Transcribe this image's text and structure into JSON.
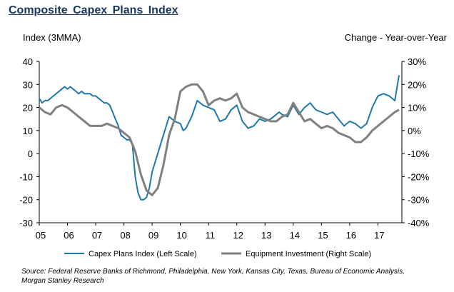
{
  "title": "Composite  Capex  Plans  Index",
  "left_axis_label": "Index (3MMA)",
  "right_axis_label": "Change - Year-over-Year",
  "source": "Source: Federal Reserve Banks of Richmond, Philadelphia, New York, Kansas City, Texas, Bureau of Economic Analysis, Morgan Stanley Research",
  "chart_data": {
    "type": "line",
    "x_tick_labels": [
      "05",
      "06",
      "07",
      "08",
      "09",
      "10",
      "11",
      "12",
      "13",
      "14",
      "15",
      "16",
      "17"
    ],
    "xlim": [
      2005.0,
      2017.85
    ],
    "left_axis": {
      "ylim": [
        -30,
        40
      ],
      "ticks": [
        -30,
        -20,
        -10,
        0,
        10,
        20,
        30,
        40
      ],
      "tick_labels": [
        "-30",
        "-20",
        "-10",
        "0",
        "10",
        "20",
        "30",
        "40"
      ]
    },
    "right_axis": {
      "ylim": [
        -40,
        30
      ],
      "ticks": [
        -40,
        -30,
        -20,
        -10,
        0,
        10,
        20,
        30
      ],
      "tick_labels": [
        "-40%",
        "-30%",
        "-20%",
        "-10%",
        "0%",
        "10%",
        "20%",
        "30%"
      ]
    },
    "grid": false,
    "legend_position": "bottom",
    "series": [
      {
        "name": "Capex Plans Index (Left Scale)",
        "axis": "left",
        "color": "#1f78a8",
        "x": [
          2005.0,
          2005.1,
          2005.2,
          2005.3,
          2005.4,
          2005.5,
          2005.6,
          2005.7,
          2005.8,
          2005.9,
          2006.0,
          2006.1,
          2006.2,
          2006.3,
          2006.4,
          2006.5,
          2006.6,
          2006.7,
          2006.8,
          2006.9,
          2007.0,
          2007.1,
          2007.2,
          2007.3,
          2007.4,
          2007.5,
          2007.6,
          2007.7,
          2007.8,
          2007.9,
          2008.0,
          2008.1,
          2008.2,
          2008.3,
          2008.4,
          2008.5,
          2008.6,
          2008.7,
          2008.8,
          2008.9,
          2009.0,
          2009.2,
          2009.4,
          2009.6,
          2009.8,
          2010.0,
          2010.1,
          2010.2,
          2010.4,
          2010.6,
          2010.8,
          2011.0,
          2011.2,
          2011.4,
          2011.6,
          2011.8,
          2012.0,
          2012.2,
          2012.4,
          2012.6,
          2012.8,
          2013.0,
          2013.2,
          2013.4,
          2013.5,
          2013.6,
          2013.8,
          2014.0,
          2014.2,
          2014.4,
          2014.6,
          2014.8,
          2015.0,
          2015.2,
          2015.4,
          2015.6,
          2015.8,
          2016.0,
          2016.2,
          2016.4,
          2016.6,
          2016.8,
          2017.0,
          2017.2,
          2017.4,
          2017.6,
          2017.75
        ],
        "values": [
          24,
          22,
          23,
          23,
          24,
          25,
          26,
          27,
          28,
          29,
          28,
          29,
          28,
          27,
          26,
          27,
          26,
          26,
          26,
          25,
          25,
          24,
          23,
          22,
          22,
          21,
          18,
          15,
          12,
          8,
          7,
          6,
          6,
          4,
          -10,
          -17,
          -20,
          -20,
          -19,
          -15,
          -8,
          0,
          8,
          16,
          14,
          13,
          10,
          11,
          16,
          23,
          21,
          20,
          19,
          14,
          15,
          19,
          21,
          14,
          11,
          12,
          15,
          14,
          15,
          17,
          18,
          17,
          16,
          21,
          17,
          20,
          22,
          19,
          18,
          17,
          18,
          15,
          12,
          14,
          13,
          11,
          13,
          20,
          25,
          26,
          25,
          23,
          34
        ]
      },
      {
        "name": "Equipment Investment (Right Scale)",
        "axis": "right",
        "color": "#808080",
        "x": [
          2005.0,
          2005.2,
          2005.4,
          2005.6,
          2005.8,
          2006.0,
          2006.2,
          2006.4,
          2006.6,
          2006.8,
          2007.0,
          2007.2,
          2007.4,
          2007.6,
          2007.8,
          2008.0,
          2008.2,
          2008.4,
          2008.6,
          2008.8,
          2009.0,
          2009.2,
          2009.4,
          2009.6,
          2009.8,
          2010.0,
          2010.2,
          2010.4,
          2010.6,
          2010.8,
          2011.0,
          2011.2,
          2011.4,
          2011.6,
          2011.8,
          2012.0,
          2012.2,
          2012.4,
          2012.6,
          2012.8,
          2013.0,
          2013.2,
          2013.4,
          2013.6,
          2013.8,
          2014.0,
          2014.2,
          2014.4,
          2014.6,
          2014.8,
          2015.0,
          2015.2,
          2015.4,
          2015.6,
          2015.8,
          2016.0,
          2016.2,
          2016.4,
          2016.6,
          2016.8,
          2017.0,
          2017.2,
          2017.4,
          2017.6,
          2017.75
        ],
        "values": [
          10,
          8,
          7,
          10,
          11,
          10,
          8,
          6,
          4,
          2,
          2,
          2,
          3,
          2,
          1,
          -1,
          -3,
          -9,
          -19,
          -26,
          -28,
          -25,
          -15,
          -2,
          5,
          17,
          19,
          20,
          20,
          17,
          11,
          13,
          14,
          13,
          14,
          16,
          10,
          8,
          7,
          6,
          5,
          4,
          4,
          6,
          7,
          12,
          8,
          4,
          5,
          3,
          1,
          2,
          1,
          -1,
          -2,
          -3,
          -5,
          -5,
          -3,
          0,
          2,
          4,
          6,
          8,
          9
        ]
      }
    ]
  }
}
